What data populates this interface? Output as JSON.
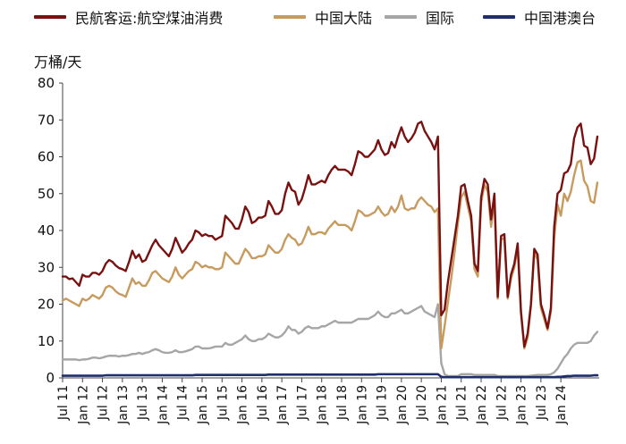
{
  "chart_data": {
    "type": "line",
    "unit_label": "万桶/天",
    "ylim": [
      0,
      80
    ],
    "yticks": [
      0,
      10,
      20,
      30,
      40,
      50,
      60,
      70,
      80
    ],
    "x_start": "2011-07",
    "x_end": "2024-01",
    "x_ticks": [
      {
        "month": "Jul",
        "year": "11"
      },
      {
        "month": "Jan",
        "year": "12"
      },
      {
        "month": "Jul",
        "year": "12"
      },
      {
        "month": "Jan",
        "year": "13"
      },
      {
        "month": "Jul",
        "year": "13"
      },
      {
        "month": "Jan",
        "year": "14"
      },
      {
        "month": "Jul",
        "year": "14"
      },
      {
        "month": "Jan",
        "year": "15"
      },
      {
        "month": "Jul",
        "year": "15"
      },
      {
        "month": "Jan",
        "year": "16"
      },
      {
        "month": "Jul",
        "year": "16"
      },
      {
        "month": "Jan",
        "year": "17"
      },
      {
        "month": "Jul",
        "year": "17"
      },
      {
        "month": "Jan",
        "year": "18"
      },
      {
        "month": "Jul",
        "year": "18"
      },
      {
        "month": "Jan",
        "year": "19"
      },
      {
        "month": "Jul",
        "year": "19"
      },
      {
        "month": "Jan",
        "year": "20"
      },
      {
        "month": "Jul",
        "year": "20"
      },
      {
        "month": "Jan",
        "year": "21"
      },
      {
        "month": "Jul",
        "year": "21"
      },
      {
        "month": "Jan",
        "year": "22"
      },
      {
        "month": "Jul",
        "year": "22"
      },
      {
        "month": "Jan",
        "year": "23"
      },
      {
        "month": "Jul",
        "year": "23"
      },
      {
        "month": "Jan",
        "year": "24"
      }
    ],
    "legend_position": "top",
    "grid": false,
    "series": [
      {
        "name": "民航客运:航空煤油消费",
        "color": "#7a1111",
        "values": [
          27.5,
          27.5,
          26.8,
          27.0,
          26.0,
          25.0,
          28.0,
          27.5,
          27.5,
          28.5,
          28.5,
          28.0,
          29.0,
          31.0,
          32.0,
          31.5,
          30.5,
          29.8,
          29.5,
          29.0,
          31.5,
          34.5,
          32.5,
          33.5,
          31.5,
          32.0,
          34.0,
          36.0,
          37.5,
          36.0,
          35.0,
          34.0,
          33.0,
          35.0,
          38.0,
          36.0,
          34.0,
          35.0,
          36.5,
          37.5,
          40.0,
          39.5,
          38.5,
          39.0,
          38.5,
          38.5,
          37.5,
          38.0,
          38.5,
          44.0,
          43.0,
          42.0,
          40.5,
          40.5,
          43.0,
          46.5,
          45.0,
          42.0,
          42.5,
          43.5,
          43.5,
          44.0,
          48.0,
          46.5,
          44.5,
          44.5,
          45.5,
          50.0,
          53.0,
          51.0,
          50.5,
          47.0,
          48.5,
          51.5,
          55.0,
          52.5,
          52.5,
          53.0,
          53.5,
          53.0,
          55.0,
          56.5,
          57.5,
          56.5,
          56.5,
          56.5,
          56.0,
          55.0,
          58.0,
          61.5,
          61.0,
          60.0,
          60.0,
          61.0,
          62.0,
          64.5,
          62.0,
          60.5,
          61.0,
          64.0,
          62.5,
          65.5,
          68.0,
          65.5,
          64.0,
          65.0,
          66.5,
          69.0,
          69.5,
          67.0,
          65.5,
          64.0,
          62.0,
          65.5,
          17.0,
          18.5,
          26.0,
          32.0,
          38.0,
          44.0,
          52.0,
          52.5,
          48.0,
          44.0,
          31.0,
          29.0,
          49.0,
          54.0,
          52.5,
          43.0,
          50.0,
          22.0,
          38.5,
          39.0,
          22.0,
          28.0,
          31.0,
          36.5,
          18.0,
          8.5,
          12.0,
          20.0,
          35.0,
          33.5,
          20.0,
          17.0,
          13.5,
          19.0,
          41.0,
          50.0,
          51.0,
          55.5,
          56.0,
          58.0,
          65.0,
          68.0,
          69.0,
          63.0,
          62.5,
          58.0,
          59.5,
          65.5
        ]
      },
      {
        "name": "中国大陆",
        "color": "#c79a5e",
        "values": [
          21.0,
          21.5,
          21.0,
          20.5,
          20.0,
          19.5,
          21.5,
          21.0,
          21.5,
          22.5,
          22.0,
          21.5,
          22.5,
          24.5,
          25.0,
          24.5,
          23.5,
          22.8,
          22.5,
          22.0,
          24.5,
          27.0,
          25.5,
          26.0,
          25.0,
          25.0,
          26.5,
          28.5,
          29.0,
          28.0,
          27.0,
          26.5,
          26.0,
          27.5,
          30.0,
          28.0,
          27.0,
          28.0,
          29.0,
          29.5,
          31.5,
          31.0,
          30.0,
          30.5,
          30.0,
          30.0,
          29.5,
          29.5,
          30.0,
          34.0,
          33.0,
          32.0,
          31.0,
          31.0,
          33.0,
          35.0,
          34.0,
          32.5,
          32.5,
          33.0,
          33.0,
          33.5,
          36.0,
          35.0,
          34.0,
          34.0,
          35.0,
          37.5,
          39.0,
          38.0,
          37.5,
          36.0,
          36.5,
          38.5,
          41.0,
          39.0,
          39.0,
          39.5,
          39.5,
          39.0,
          40.5,
          41.5,
          42.5,
          41.5,
          41.5,
          41.5,
          41.0,
          40.0,
          42.5,
          45.5,
          45.0,
          44.0,
          44.0,
          44.5,
          45.0,
          46.5,
          45.0,
          44.0,
          44.5,
          46.5,
          45.0,
          46.5,
          49.5,
          46.0,
          45.5,
          46.0,
          46.0,
          48.0,
          49.0,
          48.0,
          47.0,
          46.5,
          45.0,
          46.0,
          8.0,
          14.0,
          20.5,
          27.0,
          34.0,
          42.0,
          49.0,
          50.5,
          46.5,
          42.5,
          29.5,
          27.5,
          47.5,
          52.5,
          50.5,
          41.0,
          48.0,
          21.5,
          37.5,
          38.0,
          21.5,
          27.0,
          30.0,
          35.5,
          17.5,
          8.0,
          11.0,
          19.5,
          34.0,
          32.0,
          19.0,
          16.0,
          13.0,
          18.0,
          38.0,
          47.0,
          44.0,
          50.0,
          48.0,
          50.5,
          55.0,
          58.5,
          59.0,
          53.5,
          52.0,
          48.0,
          47.5,
          53.0
        ]
      },
      {
        "name": "国际",
        "color": "#a6a6a6",
        "values": [
          5.0,
          5.0,
          5.0,
          5.0,
          5.0,
          4.8,
          5.0,
          5.0,
          5.2,
          5.5,
          5.5,
          5.3,
          5.5,
          5.8,
          6.0,
          6.0,
          6.0,
          5.8,
          6.0,
          6.0,
          6.2,
          6.5,
          6.5,
          6.8,
          6.5,
          6.8,
          7.0,
          7.5,
          7.8,
          7.5,
          7.0,
          6.8,
          6.8,
          7.0,
          7.5,
          7.0,
          7.0,
          7.2,
          7.5,
          7.8,
          8.5,
          8.5,
          8.0,
          8.0,
          8.0,
          8.2,
          8.5,
          8.5,
          8.5,
          9.5,
          9.0,
          9.0,
          9.5,
          10.0,
          10.5,
          11.5,
          10.5,
          10.0,
          10.0,
          10.5,
          10.5,
          11.0,
          12.0,
          11.5,
          11.0,
          11.0,
          11.5,
          12.5,
          14.0,
          13.0,
          13.0,
          12.0,
          12.5,
          13.5,
          14.0,
          13.5,
          13.5,
          13.5,
          14.0,
          14.0,
          14.5,
          15.0,
          15.5,
          15.0,
          15.0,
          15.0,
          15.0,
          15.0,
          15.5,
          16.0,
          16.0,
          16.0,
          16.0,
          16.5,
          17.0,
          18.0,
          17.0,
          16.5,
          16.5,
          17.5,
          17.5,
          18.0,
          18.5,
          17.5,
          17.5,
          18.0,
          18.5,
          19.0,
          19.5,
          18.0,
          17.5,
          17.0,
          16.5,
          20.0,
          4.0,
          1.0,
          0.5,
          0.5,
          0.5,
          0.5,
          1.0,
          1.0,
          1.0,
          1.0,
          0.8,
          0.8,
          0.8,
          0.8,
          0.8,
          0.8,
          0.8,
          0.5,
          0.5,
          0.5,
          0.5,
          0.5,
          0.5,
          0.5,
          0.5,
          0.5,
          0.5,
          0.6,
          0.7,
          0.8,
          0.8,
          0.8,
          0.8,
          1.0,
          1.5,
          2.5,
          4.0,
          5.5,
          6.5,
          8.0,
          9.0,
          9.5,
          9.5,
          9.5,
          9.5,
          10.0,
          11.5,
          12.5
        ]
      },
      {
        "name": "中国港澳台",
        "color": "#1f2f6b",
        "values": [
          0.6,
          0.6,
          0.6,
          0.6,
          0.6,
          0.6,
          0.6,
          0.6,
          0.6,
          0.6,
          0.6,
          0.6,
          0.6,
          0.7,
          0.7,
          0.7,
          0.7,
          0.7,
          0.7,
          0.7,
          0.7,
          0.7,
          0.7,
          0.7,
          0.7,
          0.7,
          0.7,
          0.7,
          0.7,
          0.7,
          0.7,
          0.7,
          0.7,
          0.7,
          0.7,
          0.7,
          0.7,
          0.7,
          0.7,
          0.7,
          0.8,
          0.8,
          0.8,
          0.8,
          0.8,
          0.8,
          0.8,
          0.8,
          0.8,
          0.8,
          0.8,
          0.8,
          0.8,
          0.8,
          0.8,
          0.8,
          0.8,
          0.8,
          0.8,
          0.8,
          0.8,
          0.8,
          0.9,
          0.9,
          0.9,
          0.9,
          0.9,
          0.9,
          0.9,
          0.9,
          0.9,
          0.9,
          0.9,
          0.9,
          0.9,
          0.9,
          0.9,
          0.9,
          0.9,
          0.9,
          0.9,
          0.9,
          0.9,
          0.9,
          0.9,
          0.9,
          0.9,
          0.9,
          0.9,
          0.9,
          0.9,
          0.9,
          0.9,
          0.9,
          0.9,
          1.0,
          1.0,
          1.0,
          1.0,
          1.0,
          1.0,
          1.0,
          1.0,
          1.0,
          1.0,
          1.0,
          1.0,
          1.0,
          1.0,
          1.0,
          1.0,
          1.0,
          1.0,
          1.0,
          0.3,
          0.2,
          0.2,
          0.2,
          0.2,
          0.2,
          0.2,
          0.2,
          0.2,
          0.2,
          0.2,
          0.2,
          0.2,
          0.2,
          0.2,
          0.2,
          0.2,
          0.2,
          0.2,
          0.2,
          0.2,
          0.2,
          0.2,
          0.2,
          0.2,
          0.2,
          0.2,
          0.2,
          0.2,
          0.2,
          0.2,
          0.2,
          0.2,
          0.2,
          0.2,
          0.3,
          0.3,
          0.4,
          0.5,
          0.5,
          0.6,
          0.6,
          0.6,
          0.6,
          0.6,
          0.6,
          0.7,
          0.7
        ]
      }
    ]
  }
}
